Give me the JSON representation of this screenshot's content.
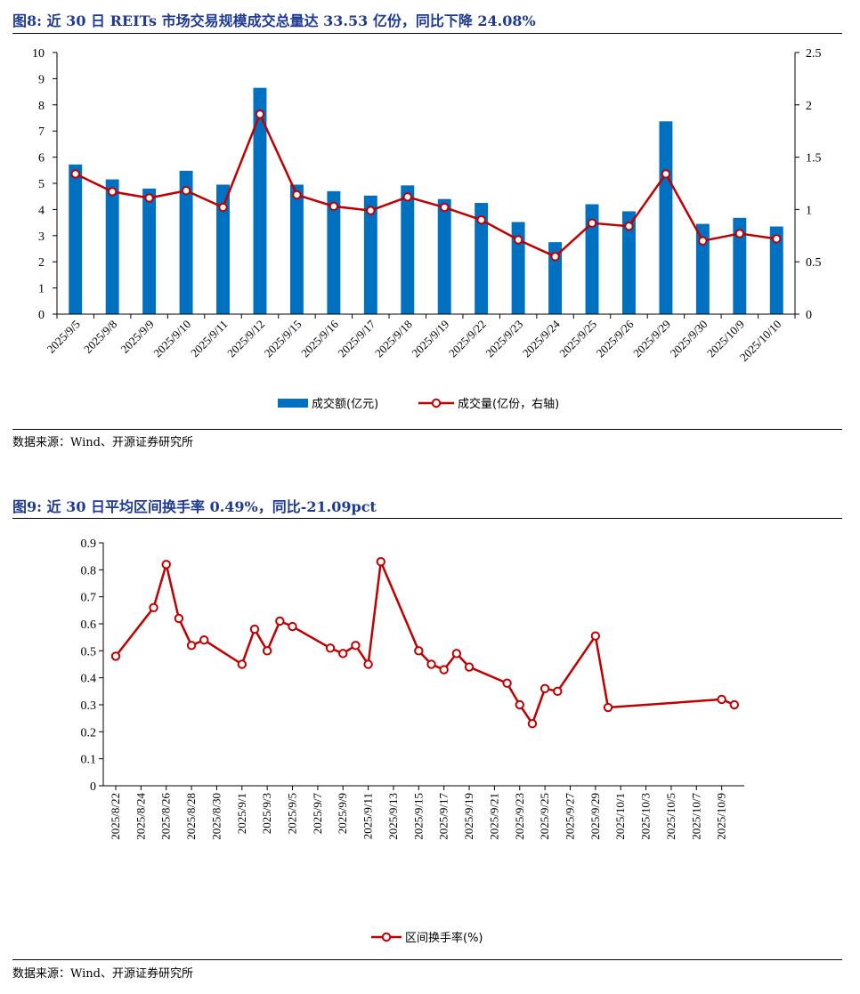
{
  "figures": [
    {
      "title": "图8: 近 30 日 REITs 市场交易规模成交总量达 33.53 亿份，同比下降 24.08%",
      "source": "数据来源：Wind、开源证券研究所"
    },
    {
      "title": "图9: 近 30 日平均区间换手率 0.49%，同比-21.09pct",
      "source": "数据来源：Wind、开源证券研究所"
    }
  ],
  "colors": {
    "bar": "#0070C0",
    "line": "#C00000",
    "title": "#1F3A93"
  },
  "chart_data": [
    {
      "type": "bar+line",
      "title": "图8: 近 30 日 REITs 市场交易规模成交总量达 33.53 亿份，同比下降 24.08%",
      "categories": [
        "2025/9/5",
        "2025/9/8",
        "2025/9/9",
        "2025/9/10",
        "2025/9/11",
        "2025/9/12",
        "2025/9/15",
        "2025/9/16",
        "2025/9/17",
        "2025/9/18",
        "2025/9/19",
        "2025/9/22",
        "2025/9/23",
        "2025/9/24",
        "2025/9/25",
        "2025/9/26",
        "2025/9/29",
        "2025/9/30",
        "2025/10/9",
        "2025/10/10"
      ],
      "series": [
        {
          "name": "成交额(亿元)",
          "type": "bar",
          "axis": "left",
          "values": [
            5.72,
            5.15,
            4.8,
            5.48,
            4.95,
            8.65,
            4.95,
            4.7,
            4.53,
            4.92,
            4.4,
            4.25,
            3.52,
            2.75,
            4.2,
            3.93,
            7.37,
            3.45,
            3.68,
            3.35
          ]
        },
        {
          "name": "成交量(亿份，右轴)",
          "type": "line",
          "axis": "right",
          "values": [
            1.34,
            1.17,
            1.11,
            1.18,
            1.02,
            1.91,
            1.14,
            1.03,
            0.99,
            1.12,
            1.02,
            0.9,
            0.71,
            0.55,
            0.87,
            0.84,
            1.34,
            0.7,
            0.77,
            0.72
          ]
        }
      ],
      "ylim_left": [
        0,
        10
      ],
      "yticks_left": [
        "0",
        "1",
        "2",
        "3",
        "4",
        "5",
        "6",
        "7",
        "8",
        "9",
        "10"
      ],
      "ylim_right": [
        0,
        2.5
      ],
      "yticks_right": [
        "0",
        "0.5",
        "1",
        "1.5",
        "2",
        "2.5"
      ],
      "legend_position": "bottom"
    },
    {
      "type": "line",
      "title": "图9: 近 30 日平均区间换手率 0.49%，同比-21.09pct",
      "series_name": "区间换手率(%)",
      "x_start": "2025/8/22",
      "points": [
        {
          "day": 0,
          "value": 0.48
        },
        {
          "day": 3,
          "value": 0.66
        },
        {
          "day": 4,
          "value": 0.82
        },
        {
          "day": 5,
          "value": 0.62
        },
        {
          "day": 6,
          "value": 0.52
        },
        {
          "day": 7,
          "value": 0.54
        },
        {
          "day": 10,
          "value": 0.45
        },
        {
          "day": 11,
          "value": 0.58
        },
        {
          "day": 12,
          "value": 0.5
        },
        {
          "day": 13,
          "value": 0.61
        },
        {
          "day": 14,
          "value": 0.59
        },
        {
          "day": 17,
          "value": 0.51
        },
        {
          "day": 18,
          "value": 0.49
        },
        {
          "day": 19,
          "value": 0.52
        },
        {
          "day": 20,
          "value": 0.45
        },
        {
          "day": 21,
          "value": 0.83
        },
        {
          "day": 24,
          "value": 0.5
        },
        {
          "day": 25,
          "value": 0.45
        },
        {
          "day": 26,
          "value": 0.43
        },
        {
          "day": 27,
          "value": 0.49
        },
        {
          "day": 28,
          "value": 0.44
        },
        {
          "day": 31,
          "value": 0.38
        },
        {
          "day": 32,
          "value": 0.3
        },
        {
          "day": 33,
          "value": 0.23
        },
        {
          "day": 34,
          "value": 0.36
        },
        {
          "day": 35,
          "value": 0.35
        },
        {
          "day": 38,
          "value": 0.555
        },
        {
          "day": 39,
          "value": 0.29
        },
        {
          "day": 48,
          "value": 0.32
        },
        {
          "day": 49,
          "value": 0.3
        }
      ],
      "x_range_days": [
        0,
        49
      ],
      "xtick_labels": [
        "2025/8/22",
        "2025/8/24",
        "2025/8/26",
        "2025/8/28",
        "2025/8/30",
        "2025/9/1",
        "2025/9/3",
        "2025/9/5",
        "2025/9/7",
        "2025/9/9",
        "2025/9/11",
        "2025/9/13",
        "2025/9/15",
        "2025/9/17",
        "2025/9/19",
        "2025/9/21",
        "2025/9/23",
        "2025/9/25",
        "2025/9/27",
        "2025/9/29",
        "2025/10/1",
        "2025/10/3",
        "2025/10/5",
        "2025/10/7",
        "2025/10/9"
      ],
      "ylim": [
        0,
        0.9
      ],
      "yticks": [
        "0",
        "0.1",
        "0.2",
        "0.3",
        "0.4",
        "0.5",
        "0.6",
        "0.7",
        "0.8",
        "0.9"
      ],
      "legend_position": "bottom"
    }
  ]
}
